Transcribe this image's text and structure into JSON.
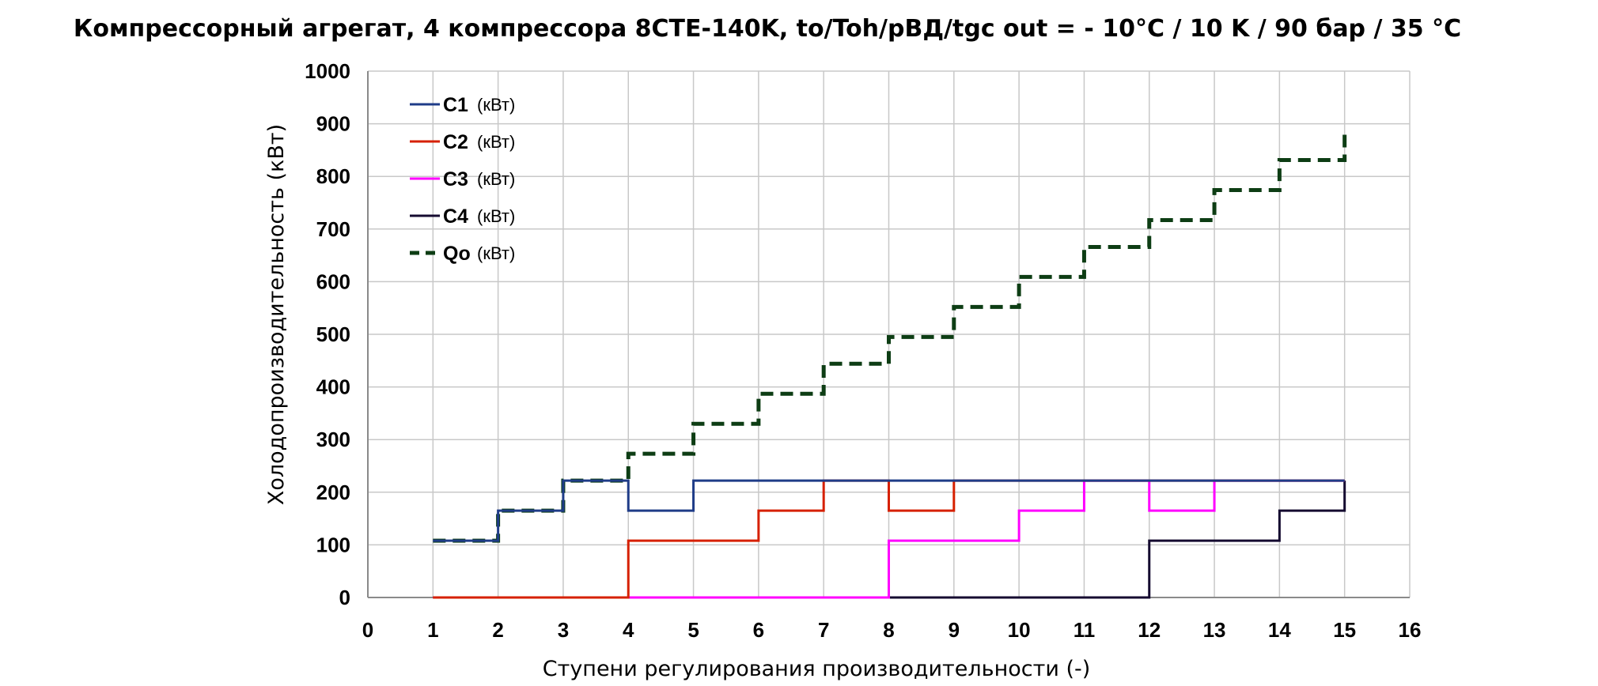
{
  "chart_data": {
    "type": "line",
    "title": "Компрессорный агрегат, 4 компрессора 8CTE-140K, to/Toh/pВД/tgc out = - 10°C / 10 K / 90 бар / 35 °C",
    "xlabel": "Ступени регулирования производительности (-)",
    "ylabel": "Холодопроизводительность (кВт)",
    "xlim": [
      0,
      16
    ],
    "ylim": [
      0,
      1000
    ],
    "x_ticks": [
      "0",
      "1",
      "2",
      "3",
      "4",
      "5",
      "6",
      "7",
      "8",
      "9",
      "10",
      "11",
      "12",
      "13",
      "14",
      "15",
      "16"
    ],
    "y_ticks": [
      "0",
      "100",
      "200",
      "300",
      "400",
      "500",
      "600",
      "700",
      "800",
      "900",
      "1000"
    ],
    "grid": true,
    "legend_position": "top-left",
    "step_style": "post",
    "x": [
      1,
      2,
      3,
      4,
      5,
      6,
      7,
      8,
      9,
      10,
      11,
      12,
      13,
      14,
      15
    ],
    "series": [
      {
        "name": "C1",
        "unit": "(кВт)",
        "color": "#1f3c88",
        "dash": "solid",
        "values": [
          108,
          165,
          222,
          165,
          222,
          222,
          222,
          222,
          222,
          222,
          222,
          222,
          222,
          222,
          222
        ]
      },
      {
        "name": "C2",
        "unit": "(кВт)",
        "color": "#d62000",
        "dash": "solid",
        "values": [
          0,
          0,
          0,
          108,
          108,
          165,
          222,
          165,
          222,
          222,
          222,
          222,
          222,
          222,
          222
        ]
      },
      {
        "name": "C3",
        "unit": "(кВт)",
        "color": "#ff00ff",
        "dash": "solid",
        "values": [
          0,
          0,
          0,
          0,
          0,
          0,
          0,
          108,
          108,
          165,
          222,
          165,
          222,
          222,
          222
        ]
      },
      {
        "name": "C4",
        "unit": "(кВт)",
        "color": "#150b30",
        "dash": "solid",
        "values": [
          0,
          0,
          0,
          0,
          0,
          0,
          0,
          0,
          0,
          0,
          0,
          108,
          108,
          165,
          222
        ]
      },
      {
        "name": "Qo",
        "unit": "(кВт)",
        "color": "#0d3d14",
        "dash": "dashed",
        "values": [
          108,
          165,
          222,
          273,
          330,
          387,
          444,
          495,
          552,
          609,
          666,
          717,
          774,
          831,
          888
        ]
      }
    ]
  }
}
